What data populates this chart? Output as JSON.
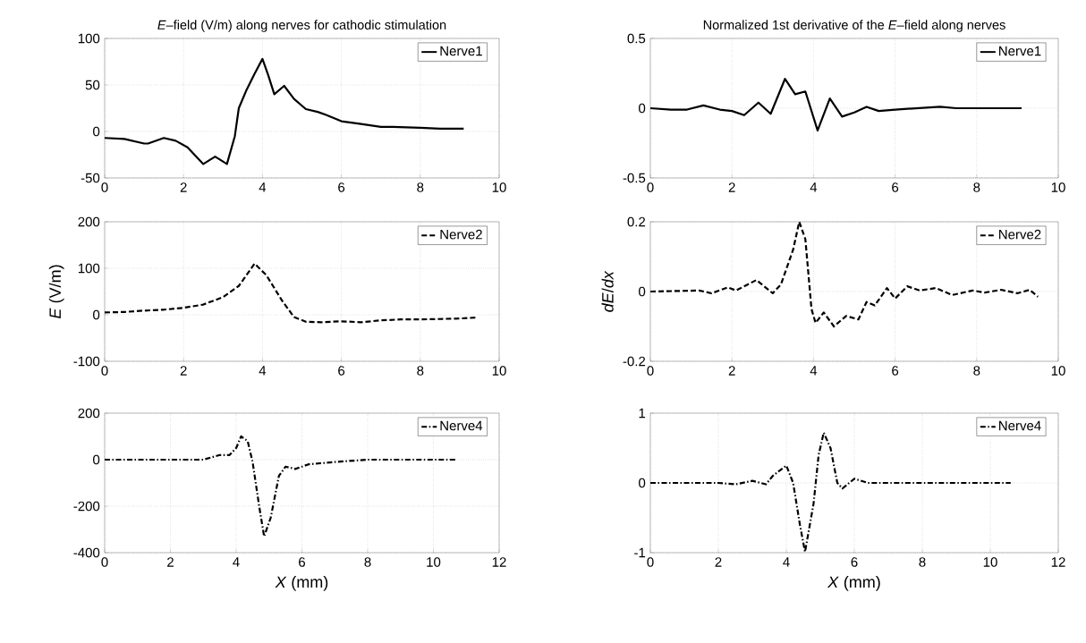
{
  "chart_data": [
    {
      "type": "line",
      "title": "*E*–field (V/m) along nerves for cathodic stimulation",
      "xlim": [
        0,
        10
      ],
      "ylim": [
        -50,
        100
      ],
      "xticks": [
        0,
        2,
        4,
        6,
        8,
        10
      ],
      "yticks": [
        -50,
        0,
        50,
        100
      ],
      "grid": true,
      "legend": "top right",
      "line_style": "solid",
      "series": [
        {
          "name": "Nerve1",
          "color": "#000000",
          "x": [
            0,
            0.5,
            1,
            1.1,
            1.5,
            1.8,
            2.1,
            2.5,
            2.8,
            3.1,
            3.3,
            3.4,
            3.6,
            3.8,
            4.0,
            4.15,
            4.3,
            4.55,
            4.8,
            5.1,
            5.4,
            5.6,
            6.0,
            6.5,
            7.0,
            7.3,
            8,
            8.5,
            9.1
          ],
          "values": [
            -7,
            -8,
            -13,
            -13,
            -7,
            -10,
            -17,
            -35,
            -27,
            -35,
            -5,
            25,
            45,
            62,
            78,
            60,
            40,
            49,
            35,
            24,
            21,
            18,
            11,
            8,
            5,
            5,
            4,
            3,
            3
          ]
        }
      ]
    },
    {
      "type": "line",
      "title": "Normalized 1st derivative of the *E*–field along nerves",
      "xlim": [
        0,
        10
      ],
      "ylim": [
        -0.5,
        0.5
      ],
      "xticks": [
        0,
        2,
        4,
        6,
        8,
        10
      ],
      "yticks": [
        -0.5,
        0,
        0.5
      ],
      "grid": true,
      "legend": "top right",
      "line_style": "solid",
      "series": [
        {
          "name": "Nerve1",
          "color": "#000000",
          "x": [
            0,
            0.5,
            0.9,
            1.3,
            1.7,
            2,
            2.3,
            2.65,
            2.95,
            3.3,
            3.55,
            3.8,
            4.1,
            4.4,
            4.7,
            5,
            5.3,
            5.6,
            6,
            7.1,
            7.5,
            9.1
          ],
          "values": [
            0,
            -0.01,
            -0.01,
            0.02,
            -0.01,
            -0.02,
            -0.05,
            0.04,
            -0.04,
            0.21,
            0.1,
            0.12,
            -0.16,
            0.07,
            -0.06,
            -0.03,
            0.01,
            -0.02,
            -0.01,
            0.01,
            0,
            0
          ]
        }
      ]
    },
    {
      "type": "line",
      "ylabel": "*E* (V/m)",
      "xlim": [
        0,
        10
      ],
      "ylim": [
        -100,
        200
      ],
      "xticks": [
        0,
        2,
        4,
        6,
        8,
        10
      ],
      "yticks": [
        -100,
        0,
        100,
        200
      ],
      "grid": true,
      "legend": "top right",
      "line_style": "dashed",
      "series": [
        {
          "name": "Nerve2",
          "color": "#000000",
          "x": [
            0,
            0.5,
            1,
            1.5,
            2,
            2.5,
            3,
            3.4,
            3.8,
            4.1,
            4.5,
            4.8,
            5.1,
            5.5,
            6,
            6.5,
            7,
            7.5,
            8,
            8.5,
            9,
            9.4
          ],
          "values": [
            5,
            6,
            9,
            11,
            15,
            22,
            38,
            62,
            110,
            85,
            30,
            -5,
            -15,
            -16,
            -14,
            -16,
            -12,
            -10,
            -10,
            -9,
            -8,
            -6
          ]
        }
      ]
    },
    {
      "type": "line",
      "ylabel": "*dE*/*dx*",
      "xlim": [
        0,
        10
      ],
      "ylim": [
        -0.2,
        0.2
      ],
      "xticks": [
        0,
        2,
        4,
        6,
        8,
        10
      ],
      "yticks": [
        -0.2,
        0,
        0.2
      ],
      "grid": true,
      "legend": "top right",
      "line_style": "dashed",
      "series": [
        {
          "name": "Nerve2",
          "color": "#000000",
          "x": [
            0,
            1.2,
            1.5,
            1.9,
            2.1,
            2.6,
            3,
            3.2,
            3.5,
            3.65,
            3.8,
            3.95,
            4.05,
            4.25,
            4.5,
            4.8,
            5.1,
            5.3,
            5.5,
            5.8,
            6,
            6.3,
            6.6,
            7,
            7.4,
            7.9,
            8.2,
            8.6,
            9,
            9.3,
            9.5
          ],
          "values": [
            0,
            0.003,
            -0.005,
            0.012,
            0.003,
            0.033,
            -0.005,
            0.02,
            0.12,
            0.2,
            0.15,
            -0.05,
            -0.09,
            -0.06,
            -0.1,
            -0.07,
            -0.08,
            -0.03,
            -0.04,
            0.01,
            -0.02,
            0.015,
            0.003,
            0.01,
            -0.01,
            0.003,
            -0.003,
            0.005,
            -0.005,
            0.005,
            -0.015
          ]
        }
      ]
    },
    {
      "type": "line",
      "xlabel": "*X* (mm)",
      "xlim": [
        0,
        12
      ],
      "ylim": [
        -400,
        200
      ],
      "xticks": [
        0,
        2,
        4,
        6,
        8,
        10,
        12
      ],
      "yticks": [
        -400,
        -200,
        0,
        200
      ],
      "grid": true,
      "legend": "top right",
      "line_style": "dashdot",
      "series": [
        {
          "name": "Nerve4",
          "color": "#000000",
          "x": [
            0,
            1,
            2,
            3,
            3.5,
            3.8,
            4,
            4.15,
            4.35,
            4.5,
            4.7,
            4.85,
            5.05,
            5.3,
            5.5,
            5.8,
            6.2,
            7,
            8,
            9,
            10,
            10.7
          ],
          "values": [
            0,
            0,
            0,
            0,
            20,
            20,
            50,
            100,
            80,
            -10,
            -200,
            -330,
            -250,
            -70,
            -30,
            -40,
            -20,
            -10,
            0,
            0,
            0,
            0
          ]
        }
      ]
    },
    {
      "type": "line",
      "xlabel": "*X* (mm)",
      "xlim": [
        0,
        12
      ],
      "ylim": [
        -1,
        1
      ],
      "xticks": [
        0,
        2,
        4,
        6,
        8,
        10,
        12
      ],
      "yticks": [
        -1,
        0,
        1
      ],
      "grid": true,
      "legend": "top right",
      "line_style": "dashdot",
      "series": [
        {
          "name": "Nerve4",
          "color": "#000000",
          "x": [
            0,
            1,
            2,
            2.5,
            3,
            3.4,
            3.6,
            4,
            4.2,
            4.4,
            4.55,
            4.8,
            4.95,
            5.1,
            5.3,
            5.5,
            5.65,
            6.0,
            6.4,
            7,
            8,
            9,
            10.6
          ],
          "values": [
            0,
            0,
            0,
            -0.02,
            0.03,
            -0.02,
            0.1,
            0.25,
            0,
            -0.6,
            -0.99,
            -0.3,
            0.4,
            0.72,
            0.5,
            0,
            -0.08,
            0.06,
            0,
            0,
            0,
            0,
            0
          ]
        }
      ]
    }
  ]
}
